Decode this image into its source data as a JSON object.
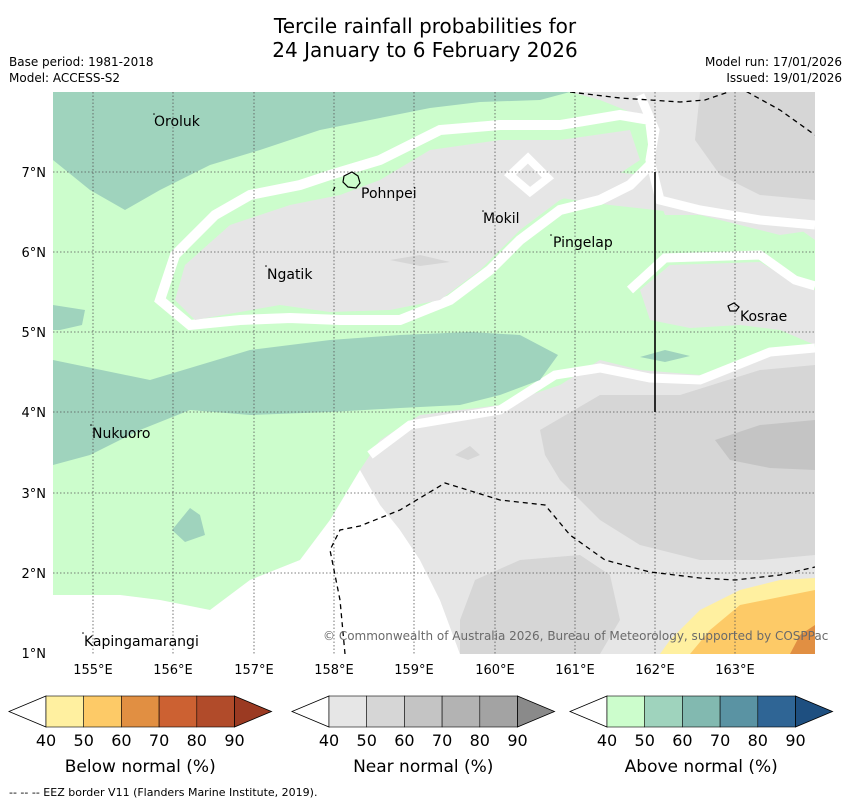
{
  "title": {
    "line1": "Tercile rainfall probabilities for",
    "line2": "24 January to 6 February 2026"
  },
  "meta": {
    "base_period": "Base period: 1981-2018",
    "model": "Model: ACCESS-S2",
    "model_run": "Model run: 17/01/2026",
    "issued": "Issued: 19/01/2026"
  },
  "map": {
    "lon_ticks": [
      "155°E",
      "156°E",
      "157°E",
      "158°E",
      "159°E",
      "160°E",
      "161°E",
      "162°E",
      "163°E"
    ],
    "lat_ticks": [
      "7°N",
      "6°N",
      "5°N",
      "4°N",
      "3°N",
      "2°N",
      "1°N"
    ],
    "extent": {
      "lon_min": 154.5,
      "lon_max": 164.0,
      "lat_min": 1.0,
      "lat_max": 8.0
    },
    "places": [
      {
        "name": "Oroluk",
        "lon": 155.75,
        "lat": 7.65
      },
      {
        "name": "Pohnpei",
        "lon": 158.2,
        "lat": 6.9
      },
      {
        "name": "Mokil",
        "lon": 159.8,
        "lat": 6.45
      },
      {
        "name": "Pingelap",
        "lon": 160.7,
        "lat": 6.2
      },
      {
        "name": "Ngatik",
        "lon": 157.15,
        "lat": 5.8
      },
      {
        "name": "Kosrae",
        "lon": 162.95,
        "lat": 5.35
      },
      {
        "name": "Nukuoro",
        "lon": 154.95,
        "lat": 3.85
      },
      {
        "name": "Kapingamarangi",
        "lon": 154.85,
        "lat": 1.2
      }
    ],
    "copyright": "© Commonwealth of Australia 2026, Bureau of Meteorology, supported by COSPPac"
  },
  "legends": [
    {
      "title": "Below normal (%)",
      "labels": [
        "40",
        "50",
        "60",
        "70",
        "80",
        "90"
      ],
      "colors": [
        "#fff0a0",
        "#fdca67",
        "#e18f42",
        "#cc6132",
        "#b14b2a",
        "#9b3a22"
      ]
    },
    {
      "title": "Near normal (%)",
      "labels": [
        "40",
        "50",
        "60",
        "70",
        "80",
        "90"
      ],
      "colors": [
        "#e6e6e6",
        "#d6d6d6",
        "#c4c4c4",
        "#b3b3b3",
        "#a3a3a3",
        "#8a8a8a"
      ]
    },
    {
      "title": "Above normal (%)",
      "labels": [
        "40",
        "50",
        "60",
        "70",
        "80",
        "90"
      ],
      "colors": [
        "#ccfdcc",
        "#9fd3bd",
        "#82b9b0",
        "#5a93a3",
        "#2f6595",
        "#1e4f80"
      ]
    }
  ],
  "footnote": "--  --  -- EEZ border V11 (Flanders Marine Institute, 2019)."
}
